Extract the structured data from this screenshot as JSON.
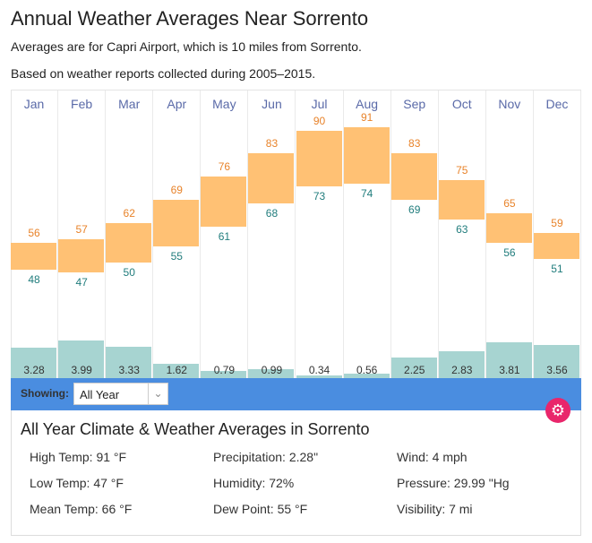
{
  "title": "Annual Weather Averages Near Sorrento",
  "subtitle1": "Averages are for Capri Airport, which is 10 miles from Sorrento.",
  "subtitle2": "Based on weather reports collected during 2005–2015.",
  "chart_data": {
    "type": "bar",
    "categories": [
      "Jan",
      "Feb",
      "Mar",
      "Apr",
      "May",
      "Jun",
      "Jul",
      "Aug",
      "Sep",
      "Oct",
      "Nov",
      "Dec"
    ],
    "series": [
      {
        "name": "High Temp (°F)",
        "values": [
          56,
          57,
          62,
          69,
          76,
          83,
          90,
          91,
          83,
          75,
          65,
          59
        ]
      },
      {
        "name": "Low Temp (°F)",
        "values": [
          48,
          47,
          50,
          55,
          61,
          68,
          73,
          74,
          69,
          63,
          56,
          51
        ]
      },
      {
        "name": "Precipitation (in)",
        "values": [
          "3.28",
          "3.99",
          "3.33",
          "1.62",
          "0.79",
          "0.99",
          "0.34",
          "0.56",
          "2.25",
          "2.83",
          "3.81",
          "3.56"
        ]
      }
    ]
  },
  "showing": {
    "label": "Showing:",
    "value": "All Year"
  },
  "panel": {
    "title": "All Year Climate & Weather Averages in Sorrento",
    "stats": [
      [
        "High Temp: 91 °F",
        "Precipitation: 2.28\"",
        "Wind: 4 mph"
      ],
      [
        "Low Temp: 47 °F",
        "Humidity: 72%",
        "Pressure: 29.99 \"Hg"
      ],
      [
        "Mean Temp: 66 °F",
        "Dew Point: 55 °F",
        "Visibility: 7 mi"
      ]
    ]
  },
  "colors": {
    "high": "#ffc174",
    "precip": "#a7d4d1",
    "bar": "#4a8de0",
    "gear": "#e9266b"
  }
}
